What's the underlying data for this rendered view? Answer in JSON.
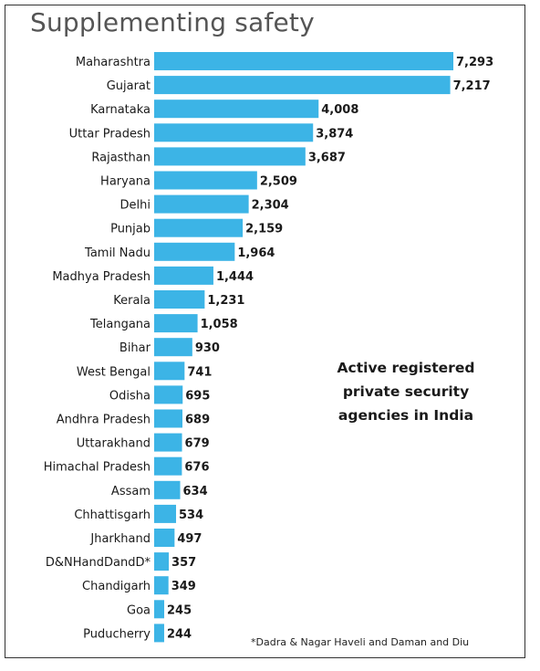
{
  "chart_data": {
    "type": "bar",
    "orientation": "horizontal",
    "title": "Supplementing safety",
    "annotation": "Active registered private security agencies in India",
    "footnote": "*Dadra & Nagar Haveli and Daman and Diu",
    "categories": [
      "Maharashtra",
      "Gujarat",
      "Karnataka",
      "Uttar Pradesh",
      "Rajasthan",
      "Haryana",
      "Delhi",
      "Punjab",
      "Tamil Nadu",
      "Madhya Pradesh",
      "Kerala",
      "Telangana",
      "Bihar",
      "West Bengal",
      "Odisha",
      "Andhra Pradesh",
      "Uttarakhand",
      "Himachal Pradesh",
      "Assam",
      "Chhattisgarh",
      "Jharkhand",
      "D&NHandDandD*",
      "Chandigarh",
      "Goa",
      "Puducherry"
    ],
    "values": [
      7293,
      7217,
      4008,
      3874,
      3687,
      2509,
      2304,
      2159,
      1964,
      1444,
      1231,
      1058,
      930,
      741,
      695,
      689,
      679,
      676,
      634,
      534,
      497,
      357,
      349,
      245,
      244
    ],
    "value_labels": [
      "7,293",
      "7,217",
      "4,008",
      "3,874",
      "3,687",
      "2,509",
      "2,304",
      "2,159",
      "1,964",
      "1,444",
      "1,231",
      "1,058",
      "930",
      "741",
      "695",
      "689",
      "679",
      "676",
      "634",
      "534",
      "497",
      "357",
      "349",
      "245",
      "244"
    ],
    "xlim": [
      0,
      7293
    ],
    "bar_color": "#3cb4e6",
    "grid": false,
    "legend": "none"
  }
}
